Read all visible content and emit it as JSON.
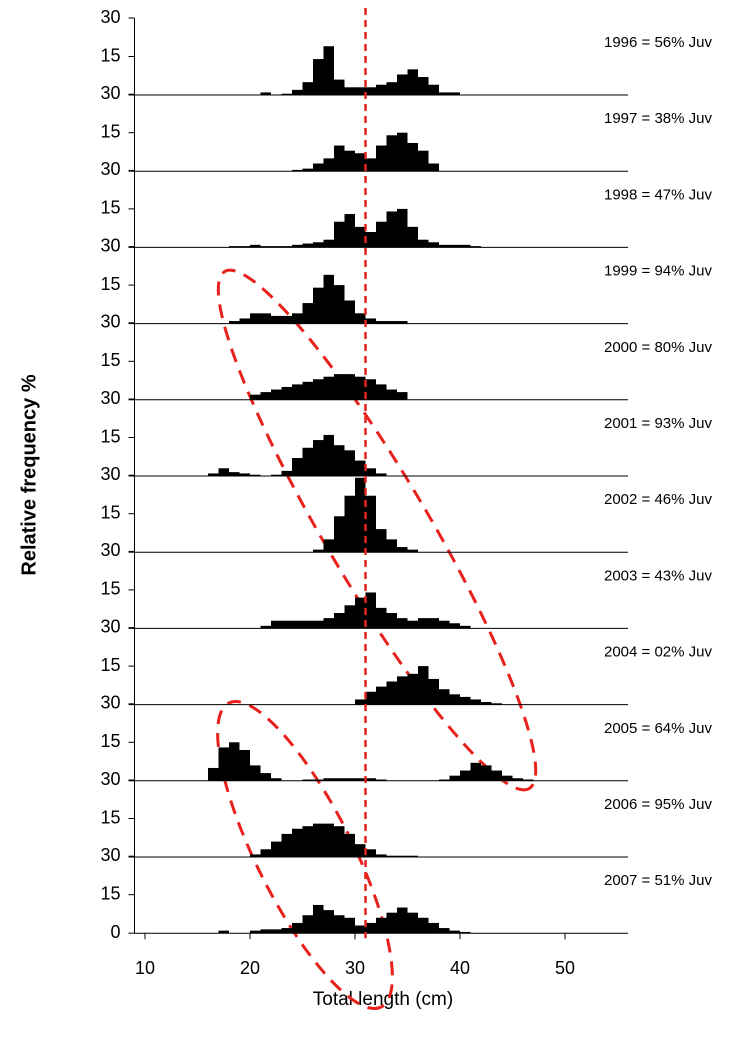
{
  "chart_data": {
    "type": "histogram",
    "ylabel": "Relative frequency %",
    "xlabel": "Total length (cm)",
    "xlim": [
      9,
      56
    ],
    "xticks": [
      10,
      20,
      30,
      40,
      50
    ],
    "ylim": [
      0,
      30
    ],
    "yticks": [
      0,
      15,
      30
    ],
    "color": "#000000",
    "reference_x": 31,
    "reference_color": "#e8211c",
    "panels": [
      {
        "annotation": "1996 = 56% Juv",
        "bins": [
          21,
          22,
          23,
          24,
          25,
          26,
          27,
          28,
          29,
          30,
          31,
          32,
          33,
          34,
          35,
          36,
          37,
          38,
          39,
          40
        ],
        "values": [
          1,
          0,
          0.5,
          2,
          5,
          14,
          19,
          6,
          3,
          3,
          3,
          4,
          5,
          8,
          10,
          7,
          4,
          1,
          1
        ]
      },
      {
        "annotation": "1997 = 38% Juv",
        "bins": [
          24,
          25,
          26,
          27,
          28,
          29,
          30,
          31,
          32,
          33,
          34,
          35,
          36,
          37,
          38
        ],
        "values": [
          0.5,
          1,
          3,
          5,
          10,
          8,
          7,
          5,
          10,
          14,
          15,
          11,
          8,
          3
        ]
      },
      {
        "annotation": "1998 = 47% Juv",
        "bins": [
          18,
          19,
          20,
          21,
          22,
          23,
          24,
          25,
          26,
          27,
          28,
          29,
          30,
          31,
          32,
          33,
          34,
          35,
          36,
          37,
          38,
          39,
          40,
          41,
          42
        ],
        "values": [
          0.5,
          0.5,
          1,
          0.5,
          0.5,
          0.5,
          1,
          1.5,
          2,
          3,
          10,
          13,
          8,
          6,
          10,
          14,
          15,
          8,
          3,
          2,
          1,
          1,
          1,
          0.5
        ]
      },
      {
        "annotation": "1999 = 94% Juv",
        "bins": [
          18,
          19,
          20,
          21,
          22,
          23,
          24,
          25,
          26,
          27,
          28,
          29,
          30,
          31,
          32,
          33,
          34,
          35
        ],
        "values": [
          1,
          2,
          4,
          4,
          3,
          3,
          4,
          8,
          14,
          19,
          15,
          9,
          4,
          2,
          1,
          1,
          1
        ]
      },
      {
        "annotation": "2000 = 80% Juv",
        "bins": [
          20,
          21,
          22,
          23,
          24,
          25,
          26,
          27,
          28,
          29,
          30,
          31,
          32,
          33,
          34,
          35
        ],
        "values": [
          2,
          3,
          4,
          5,
          6,
          7,
          8,
          9,
          10,
          10,
          9,
          8,
          6,
          4,
          3
        ]
      },
      {
        "annotation": "2001 = 93% Juv",
        "bins": [
          16,
          17,
          18,
          19,
          20,
          21,
          22,
          23,
          24,
          25,
          26,
          27,
          28,
          29,
          30,
          31,
          32,
          33
        ],
        "values": [
          1,
          3,
          1.5,
          1,
          0.5,
          0,
          0.5,
          2,
          7,
          11,
          14,
          16,
          12,
          10,
          6,
          3,
          1
        ]
      },
      {
        "annotation": "2002 = 46% Juv",
        "bins": [
          26,
          27,
          28,
          29,
          30,
          31,
          32,
          33,
          34,
          35,
          36
        ],
        "values": [
          1,
          5,
          14,
          22,
          29,
          22,
          9,
          5,
          2,
          1
        ]
      },
      {
        "annotation": "2003 = 43% Juv",
        "bins": [
          21,
          22,
          23,
          24,
          25,
          26,
          27,
          28,
          29,
          30,
          31,
          32,
          33,
          34,
          35,
          36,
          37,
          38,
          39,
          40,
          41
        ],
        "values": [
          1,
          3,
          3,
          3,
          3,
          3,
          4,
          6,
          9,
          12,
          14,
          8,
          6,
          4,
          3,
          4,
          4,
          3,
          2,
          1
        ]
      },
      {
        "annotation": "2004 = 02% Juv",
        "bins": [
          30,
          31,
          32,
          33,
          34,
          35,
          36,
          37,
          38,
          39,
          40,
          41,
          42,
          43,
          44
        ],
        "values": [
          2,
          5,
          7,
          9,
          11,
          12,
          15,
          10,
          6,
          4,
          3,
          2,
          1,
          0.5
        ]
      },
      {
        "annotation": "2005 = 64% Juv",
        "bins": [
          16,
          17,
          18,
          19,
          20,
          21,
          22,
          23,
          24,
          25,
          26,
          27,
          28,
          29,
          30,
          31,
          32,
          33,
          34,
          35,
          36,
          37,
          38,
          39,
          40,
          41,
          42,
          43,
          44,
          45,
          46,
          47
        ],
        "values": [
          5,
          13,
          15,
          12,
          6,
          3,
          1,
          0,
          0,
          0.5,
          0.5,
          1,
          1,
          1,
          1,
          1,
          0.5,
          0,
          0,
          0,
          0,
          0,
          0.5,
          2,
          4,
          7,
          6,
          4,
          2,
          1,
          0.5
        ]
      },
      {
        "annotation": "2006 = 95% Juv",
        "bins": [
          20,
          21,
          22,
          23,
          24,
          25,
          26,
          27,
          28,
          29,
          30,
          31,
          32,
          33,
          34,
          35,
          36
        ],
        "values": [
          1,
          3,
          6,
          9,
          11,
          12,
          13,
          13,
          12,
          9,
          5,
          3,
          1,
          0.5,
          0.5,
          0.5
        ]
      },
      {
        "annotation": "2007 = 51% Juv",
        "bins": [
          17,
          18,
          19,
          20,
          21,
          22,
          23,
          24,
          25,
          26,
          27,
          28,
          29,
          30,
          31,
          32,
          33,
          34,
          35,
          36,
          37,
          38,
          39,
          40,
          41
        ],
        "values": [
          1,
          0,
          0,
          1,
          1.5,
          1.5,
          2,
          4,
          7,
          11,
          9,
          7,
          6,
          3,
          4,
          6,
          8,
          10,
          8,
          6,
          4,
          2,
          1,
          0.5
        ]
      }
    ]
  }
}
